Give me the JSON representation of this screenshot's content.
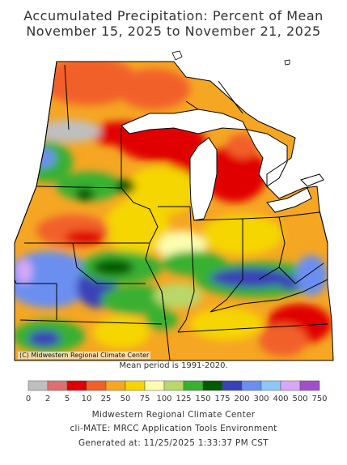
{
  "title_line1": "Accumulated Precipitation: Percent of Mean",
  "title_line2": "November 15, 2025 to November 21, 2025",
  "copyright": "(C) Midwestern Regional Climate Center",
  "mean_note": "Mean period is 1991-2020.",
  "legend": {
    "colors": [
      "#bfbfbf",
      "#e07070",
      "#e00000",
      "#f2602a",
      "#f5a623",
      "#f5d600",
      "#fdfcb0",
      "#b8d86b",
      "#38b030",
      "#005a00",
      "#3a42b8",
      "#6a8ff0",
      "#8ec8f7",
      "#d8a8f7",
      "#a050c8"
    ],
    "labels": [
      "0",
      "2",
      "5",
      "10",
      "25",
      "50",
      "75",
      "100",
      "125",
      "150",
      "175",
      "200",
      "300",
      "400",
      "500",
      "750"
    ]
  },
  "footer": {
    "line1": "Midwestern Regional Climate Center",
    "line2": "cli-MATE: MRCC Application Tools Environment",
    "line3": "Generated at: 11/25/2025 1:33:37 PM CST"
  }
}
